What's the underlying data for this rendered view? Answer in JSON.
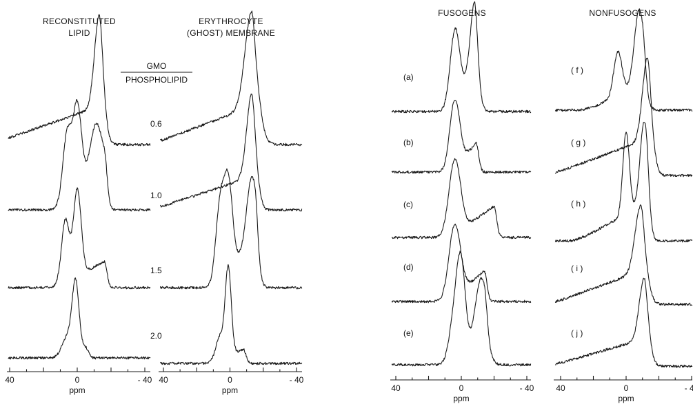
{
  "chart_data": {
    "type": "line",
    "x_axis": {
      "unit": "ppm",
      "reversed": true,
      "range": [
        45,
        -45
      ],
      "tick_values": [
        40,
        0,
        -40
      ],
      "tick_labels": [
        "40",
        "0",
        "- 40"
      ]
    },
    "ratio_header": [
      "GMO",
      "PHOSPHOLIPID"
    ],
    "panels": [
      {
        "id": "reconstituted",
        "title_lines": [
          "RECONSTITUTED",
          "LIPID"
        ],
        "traces": [
          {
            "label": "",
            "peaks": [
              {
                "ppm": -13,
                "height": 1.0,
                "width": 2.8
              }
            ],
            "shoulder": {
              "from": 44,
              "to": -13,
              "height": 0.42
            }
          },
          {
            "label": "",
            "peaks": [
              {
                "ppm": 0,
                "height": 1.0,
                "width": 2.5
              },
              {
                "ppm": 6,
                "height": 0.78,
                "width": 2.5
              },
              {
                "ppm": -11,
                "height": 0.58,
                "width": 3.5
              }
            ],
            "shoulder": {
              "from": 8,
              "to": -16,
              "height": 0.5
            }
          },
          {
            "label": "",
            "peaks": [
              {
                "ppm": 0,
                "height": 1.0,
                "width": 2.3
              },
              {
                "ppm": 7,
                "height": 0.72,
                "width": 2.3
              }
            ],
            "shoulder": {
              "from": 9,
              "to": -16,
              "height": 0.3
            }
          },
          {
            "label": "",
            "peaks": [
              {
                "ppm": 1,
                "height": 1.0,
                "width": 2.0
              },
              {
                "ppm": 6,
                "height": 0.28,
                "width": 3.0
              }
            ],
            "shoulder": {
              "from": 7,
              "to": -5,
              "height": 0.15
            }
          }
        ]
      },
      {
        "id": "ghost",
        "title_lines": [
          "ERYTHROCYTE",
          "(GHOST) MEMBRANE"
        ],
        "traces": [
          {
            "label": "0.6",
            "peaks": [
              {
                "ppm": -13,
                "height": 1.0,
                "width": 4.0
              }
            ],
            "shoulder": {
              "from": 40,
              "to": -13,
              "height": 0.4
            }
          },
          {
            "label": "1.0",
            "peaks": [
              {
                "ppm": -13,
                "height": 1.0,
                "width": 3.0
              }
            ],
            "shoulder": {
              "from": 40,
              "to": -13,
              "height": 0.4
            }
          },
          {
            "label": "1.5",
            "peaks": [
              {
                "ppm": 1,
                "height": 1.0,
                "width": 2.5
              },
              {
                "ppm": 6,
                "height": 0.85,
                "width": 2.5
              },
              {
                "ppm": -13,
                "height": 0.75,
                "width": 3.0
              }
            ],
            "shoulder": {
              "from": 7,
              "to": -15,
              "height": 0.55
            }
          },
          {
            "label": "2.0",
            "peaks": [
              {
                "ppm": 1,
                "height": 1.0,
                "width": 1.8
              },
              {
                "ppm": 6,
                "height": 0.28,
                "width": 2.5
              }
            ],
            "shoulder": {
              "from": 7,
              "to": -8,
              "height": 0.16
            }
          }
        ]
      },
      {
        "id": "fusogens",
        "title_lines": [
          "FUSOGENS"
        ],
        "traces": [
          {
            "label": "(a)",
            "peaks": [
              {
                "ppm": 4,
                "height": 1.0,
                "width": 2.8
              },
              {
                "ppm": -8,
                "height": 0.86,
                "width": 2.5
              }
            ],
            "shoulder": {
              "from": 5,
              "to": -8,
              "height": 0.62
            }
          },
          {
            "label": "(b)",
            "peaks": [
              {
                "ppm": 4,
                "height": 1.0,
                "width": 3.0
              }
            ],
            "shoulder": {
              "from": 4,
              "to": -9,
              "height": 0.42
            }
          },
          {
            "label": "(c)",
            "peaks": [
              {
                "ppm": 4,
                "height": 1.0,
                "width": 3.5
              }
            ],
            "shoulder": {
              "from": 4,
              "to": -20,
              "height": 0.42
            }
          },
          {
            "label": "(d)",
            "peaks": [
              {
                "ppm": 4,
                "height": 1.0,
                "width": 3.5
              }
            ],
            "shoulder": {
              "from": 4,
              "to": -14,
              "height": 0.42
            }
          },
          {
            "label": "(e)",
            "peaks": [
              {
                "ppm": 0,
                "height": 1.0,
                "width": 2.5
              },
              {
                "ppm": -12,
                "height": 0.72,
                "width": 3.5
              },
              {
                "ppm": 4,
                "height": 0.6,
                "width": 3.0
              }
            ],
            "shoulder": {
              "from": 5,
              "to": -14,
              "height": 0.4
            }
          }
        ]
      },
      {
        "id": "nonfusogens",
        "title_lines": [
          "NONFUSOGENS"
        ],
        "traces": [
          {
            "label": "( f )",
            "peaks": [
              {
                "ppm": -8,
                "height": 1.0,
                "width": 3.0
              },
              {
                "ppm": 5,
                "height": 0.58,
                "width": 2.5
              }
            ],
            "shoulder": {
              "from": 20,
              "to": -10,
              "height": 0.35
            }
          },
          {
            "label": "( g )",
            "peaks": [
              {
                "ppm": -13,
                "height": 1.0,
                "width": 3.0
              }
            ],
            "shoulder": {
              "from": 40,
              "to": -13,
              "height": 0.45
            }
          },
          {
            "label": "( h )",
            "peaks": [
              {
                "ppm": -11,
                "height": 1.0,
                "width": 2.5
              },
              {
                "ppm": 0,
                "height": 1.0,
                "width": 2.0
              }
            ],
            "shoulder": {
              "from": 25,
              "to": -12,
              "height": 0.45
            }
          },
          {
            "label": "( i )",
            "peaks": [
              {
                "ppm": -9,
                "height": 1.0,
                "width": 3.5
              }
            ],
            "shoulder": {
              "from": 40,
              "to": -9,
              "height": 0.5
            }
          },
          {
            "label": "( j )",
            "peaks": [
              {
                "ppm": -11,
                "height": 1.0,
                "width": 3.0
              }
            ],
            "shoulder": {
              "from": 40,
              "to": -11,
              "height": 0.45
            }
          }
        ]
      }
    ]
  }
}
